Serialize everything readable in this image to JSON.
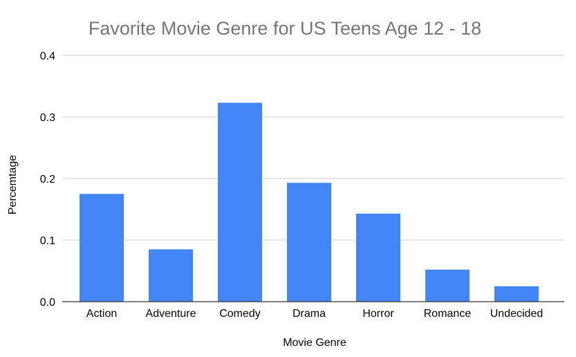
{
  "chart_data": {
    "type": "bar",
    "title": "Favorite Movie Genre for US Teens Age 12 - 18",
    "xlabel": "Movie Genre",
    "ylabel": "Percemtage",
    "categories": [
      "Action",
      "Adventure",
      "Comedy",
      "Drama",
      "Horror",
      "Romance",
      "Undecided"
    ],
    "series": [
      {
        "values": [
          0.175,
          0.085,
          0.323,
          0.193,
          0.143,
          0.052,
          0.025
        ]
      }
    ],
    "ylim": [
      0,
      0.4
    ],
    "yticks": [
      "0.0",
      "0.1",
      "0.2",
      "0.3",
      "0.4"
    ],
    "grid": true,
    "legend": "none",
    "colors": {
      "bar": "#4285f4",
      "title": "#757575",
      "grid": "#cccccc",
      "axis": "#333333"
    }
  }
}
